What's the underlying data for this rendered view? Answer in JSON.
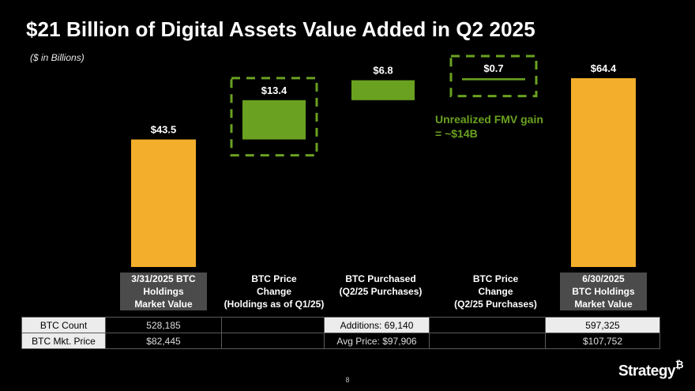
{
  "title": "$21 Billion of Digital Assets Value Added in Q2 2025",
  "subtitle": "($ in Billions)",
  "colors": {
    "total": "#f3ae2b",
    "increment": "#6aa121",
    "dash": "#6aa121"
  },
  "chart_data": {
    "type": "bar",
    "subtype": "waterfall",
    "categories": [
      "3/31/2025 BTC Holdings Market Value",
      "BTC Price Change (Holdings as of Q1/25)",
      "BTC Purchased (Q2/25 Purchases)",
      "BTC Price Change (Q2/25 Purchases)",
      "6/30/2025 BTC Holdings Market Value"
    ],
    "values": [
      43.5,
      13.4,
      6.8,
      0.7,
      64.4
    ],
    "value_labels": [
      "$43.5",
      "$13.4",
      "$6.8",
      "$0.7",
      "$64.4"
    ],
    "kinds": [
      "total",
      "increment",
      "increment",
      "increment",
      "total"
    ],
    "highlighted": [
      false,
      true,
      false,
      true,
      false
    ],
    "ylim": [
      0,
      64.4
    ],
    "annotation": [
      "Unrealized FMV gain",
      "= ~$14B"
    ]
  },
  "labels": [
    [
      "3/31/2025 BTC",
      "Holdings",
      "Market Value"
    ],
    [
      "BTC Price",
      "Change",
      "(Holdings as of Q1/25)"
    ],
    [
      "BTC Purchased",
      "(Q2/25 Purchases)",
      ""
    ],
    [
      "BTC Price",
      "Change",
      "(Q2/25 Purchases)"
    ],
    [
      "6/30/2025",
      "BTC Holdings",
      "Market Value"
    ]
  ],
  "table": {
    "rows": [
      {
        "header": "BTC Count",
        "cells": [
          "528,185",
          "",
          "Additions: 69,140",
          "",
          "597,325"
        ]
      },
      {
        "header": "BTC Mkt. Price",
        "cells": [
          "$82,445",
          "",
          "Avg Price: $97,906",
          "",
          "$107,752"
        ]
      }
    ]
  },
  "page_number": "8",
  "logo": {
    "text": "Strategy",
    "mark": "₿"
  }
}
